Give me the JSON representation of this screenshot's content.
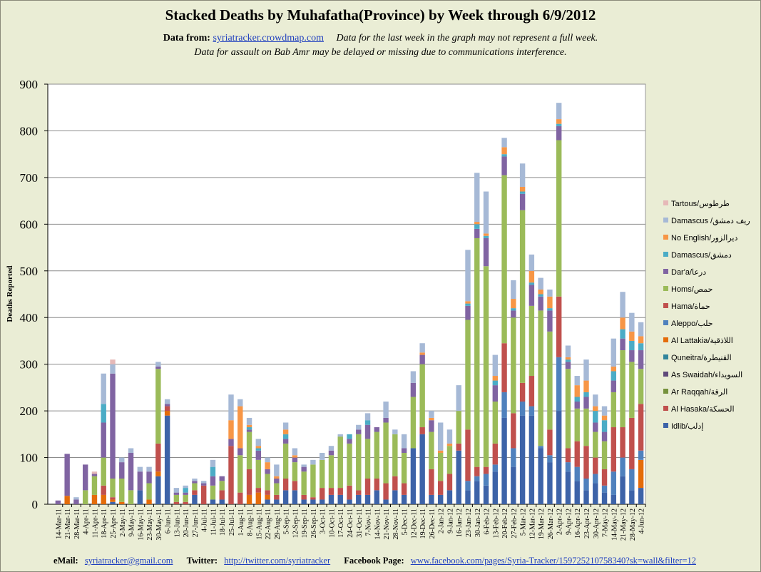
{
  "title": "Stacked Deaths by Muhafatha(Province) by Week through 6/9/2012",
  "header": {
    "data_from_label": "Data from:",
    "data_from_link": "syriatracker.crowdmap.com",
    "note1": "Data for the last week in the graph may not represent a full week.",
    "note2": "Data for assault on Bab Amr may be delayed or missing due to communications interference."
  },
  "footer": {
    "email_label": "eMail:",
    "email": "syriatracker@gmail.com",
    "twitter_label": "Twitter:",
    "twitter": "http://twitter.com/syriatracker",
    "facebook_label": "Facebook  Page:",
    "facebook": "www.facebook.com/pages/Syria-Tracker/159725210758340?sk=wall&filter=12"
  },
  "chart_data": {
    "type": "bar",
    "stacked": true,
    "title": "Stacked Deaths by Muhafatha(Province) by Week through 6/9/2012",
    "ylabel": "Deaths Reported",
    "xlabel": "",
    "ylim": [
      0,
      900
    ],
    "yticks": [
      0,
      100,
      200,
      300,
      400,
      500,
      600,
      700,
      800,
      900
    ],
    "grid": true,
    "legend_position": "right",
    "categories": [
      "14-Mar-11",
      "21-Mar-11",
      "28-Mar-11",
      "4-Apr-11",
      "11-Apr-11",
      "18-Apr-11",
      "25-Apr-11",
      "2-May-11",
      "9-May-11",
      "16-May-11",
      "23-May-11",
      "30-May-11",
      "6-Jun-11",
      "13-Jun-11",
      "20-Jun-11",
      "27-Jun-11",
      "4-Jul-11",
      "11-Jul-11",
      "18-Jul-11",
      "25-Jul-11",
      "1-Aug-11",
      "8-Aug-11",
      "15-Aug-11",
      "22-Aug-11",
      "29-Aug-11",
      "5-Sep-11",
      "12-Sep-11",
      "19-Sep-11",
      "26-Sep-11",
      "3-Oct-11",
      "10-Oct-11",
      "17-Oct-11",
      "24-Oct-11",
      "31-Oct-11",
      "7-Nov-11",
      "14-Nov-11",
      "21-Nov-11",
      "28-Nov-11",
      "5-Dec-11",
      "12-Dec-11",
      "19-Dec-11",
      "26-Dec-11",
      "2-Jan-12",
      "9-Jan-12",
      "16-Jan-12",
      "23-Jan-12",
      "30-Jan-12",
      "6-Feb-12",
      "13-Feb-12",
      "20-Feb-12",
      "27-Feb-12",
      "5-Mar-12",
      "12-Mar-12",
      "19-Mar-12",
      "26-Mar-12",
      "2-Apr-12",
      "9-Apr-12",
      "16-Apr-12",
      "23-Apr-12",
      "30-Apr-12",
      "7-May-12",
      "14-May-12",
      "21-May-12",
      "28-May-12",
      "4-Jun-12"
    ],
    "series": [
      {
        "name": "Idlib/إدلب",
        "color": "#3d63a8",
        "values": [
          0,
          0,
          0,
          0,
          0,
          0,
          5,
          0,
          0,
          30,
          0,
          60,
          190,
          0,
          0,
          20,
          0,
          10,
          10,
          0,
          0,
          0,
          0,
          10,
          10,
          30,
          30,
          10,
          10,
          10,
          20,
          20,
          10,
          20,
          20,
          30,
          10,
          30,
          20,
          120,
          150,
          20,
          20,
          30,
          115,
          30,
          50,
          40,
          70,
          185,
          80,
          190,
          190,
          120,
          90,
          200,
          70,
          50,
          30,
          45,
          25,
          20,
          60,
          30,
          35
        ]
      },
      {
        "name": "Al Hasaka/الحسكة",
        "color": "#c0504d",
        "values": [
          0,
          0,
          0,
          0,
          0,
          0,
          0,
          0,
          0,
          0,
          0,
          0,
          0,
          0,
          0,
          0,
          0,
          0,
          0,
          0,
          0,
          0,
          0,
          0,
          0,
          0,
          0,
          0,
          0,
          0,
          0,
          0,
          0,
          0,
          0,
          0,
          0,
          0,
          0,
          0,
          0,
          0,
          0,
          0,
          0,
          0,
          0,
          0,
          0,
          0,
          0,
          0,
          0,
          0,
          0,
          0,
          0,
          0,
          0,
          0,
          0,
          0,
          0,
          0,
          0
        ]
      },
      {
        "name": "Ar Raqqah/الرقة",
        "color": "#76923c",
        "values": [
          0,
          0,
          0,
          0,
          0,
          0,
          0,
          0,
          0,
          0,
          0,
          0,
          0,
          0,
          0,
          0,
          0,
          0,
          0,
          0,
          0,
          0,
          0,
          0,
          0,
          0,
          0,
          0,
          0,
          0,
          0,
          0,
          0,
          0,
          0,
          0,
          0,
          0,
          0,
          0,
          0,
          0,
          0,
          0,
          0,
          0,
          0,
          0,
          0,
          0,
          0,
          0,
          0,
          0,
          0,
          0,
          0,
          0,
          0,
          0,
          0,
          0,
          0,
          0,
          0
        ]
      },
      {
        "name": "As Swaidah/السويداء",
        "color": "#5f497a",
        "values": [
          0,
          0,
          0,
          0,
          0,
          0,
          0,
          0,
          0,
          0,
          0,
          0,
          0,
          0,
          0,
          0,
          0,
          0,
          0,
          0,
          0,
          0,
          0,
          0,
          0,
          0,
          0,
          0,
          0,
          0,
          0,
          0,
          0,
          0,
          0,
          0,
          0,
          0,
          0,
          0,
          0,
          0,
          0,
          0,
          0,
          0,
          0,
          0,
          0,
          0,
          0,
          0,
          0,
          0,
          0,
          0,
          0,
          0,
          0,
          0,
          0,
          0,
          0,
          0,
          0
        ]
      },
      {
        "name": "Quneitra/القنيطرة",
        "color": "#31859c",
        "values": [
          0,
          0,
          0,
          0,
          0,
          0,
          0,
          0,
          0,
          0,
          0,
          0,
          0,
          0,
          0,
          0,
          0,
          0,
          0,
          0,
          0,
          0,
          0,
          0,
          0,
          0,
          0,
          0,
          0,
          0,
          0,
          0,
          0,
          0,
          0,
          0,
          0,
          0,
          0,
          0,
          0,
          0,
          0,
          0,
          0,
          0,
          0,
          0,
          0,
          0,
          0,
          0,
          0,
          0,
          0,
          0,
          0,
          0,
          0,
          0,
          0,
          0,
          0,
          0,
          0
        ]
      },
      {
        "name": "Al Lattakia/اللاذقية",
        "color": "#e46c0a",
        "values": [
          0,
          18,
          0,
          0,
          20,
          20,
          5,
          5,
          0,
          0,
          10,
          10,
          10,
          0,
          0,
          0,
          0,
          0,
          0,
          0,
          0,
          20,
          25,
          10,
          0,
          0,
          0,
          0,
          0,
          0,
          0,
          0,
          0,
          0,
          0,
          0,
          0,
          0,
          0,
          0,
          0,
          0,
          0,
          0,
          0,
          0,
          0,
          0,
          0,
          0,
          0,
          0,
          0,
          0,
          0,
          0,
          0,
          0,
          0,
          0,
          0,
          0,
          0,
          0,
          60
        ]
      },
      {
        "name": "Aleppo/حلب",
        "color": "#4f81bd",
        "values": [
          0,
          0,
          0,
          0,
          0,
          0,
          0,
          0,
          0,
          0,
          0,
          0,
          0,
          0,
          0,
          0,
          0,
          0,
          0,
          0,
          0,
          0,
          0,
          0,
          0,
          0,
          0,
          0,
          0,
          0,
          0,
          0,
          0,
          0,
          0,
          0,
          0,
          0,
          0,
          0,
          0,
          0,
          0,
          0,
          0,
          20,
          10,
          25,
          15,
          55,
          40,
          30,
          20,
          5,
          15,
          115,
          20,
          30,
          25,
          20,
          15,
          50,
          40,
          45,
          20
        ]
      },
      {
        "name": "Hama/حماة",
        "color": "#c0504d",
        "values": [
          0,
          0,
          0,
          0,
          0,
          20,
          5,
          0,
          0,
          0,
          0,
          60,
          10,
          5,
          5,
          10,
          40,
          0,
          20,
          125,
          25,
          55,
          10,
          10,
          10,
          25,
          20,
          10,
          5,
          25,
          15,
          15,
          30,
          10,
          35,
          25,
          35,
          30,
          25,
          0,
          15,
          55,
          30,
          35,
          15,
          110,
          20,
          15,
          45,
          105,
          75,
          40,
          65,
          0,
          55,
          130,
          30,
          55,
          70,
          35,
          35,
          95,
          65,
          110,
          100
        ]
      },
      {
        "name": "Homs/حمص",
        "color": "#9bbb59",
        "values": [
          0,
          0,
          0,
          30,
          40,
          60,
          40,
          50,
          30,
          0,
          35,
          160,
          0,
          15,
          15,
          15,
          0,
          30,
          20,
          0,
          80,
          80,
          60,
          35,
          25,
          75,
          40,
          50,
          70,
          60,
          70,
          110,
          90,
          120,
          85,
          100,
          130,
          90,
          65,
          110,
          135,
          80,
          60,
          60,
          70,
          235,
          490,
          430,
          90,
          360,
          205,
          370,
          150,
          290,
          210,
          335,
          170,
          70,
          80,
          55,
          60,
          75,
          165,
          120,
          75
        ]
      },
      {
        "name": "Dar'a/درعا",
        "color": "#8064a2",
        "values": [
          8,
          90,
          10,
          55,
          5,
          75,
          225,
          35,
          80,
          40,
          25,
          5,
          5,
          5,
          5,
          5,
          5,
          20,
          10,
          15,
          15,
          5,
          20,
          10,
          10,
          10,
          10,
          10,
          0,
          0,
          10,
          0,
          10,
          10,
          30,
          10,
          10,
          0,
          10,
          30,
          20,
          25,
          0,
          0,
          0,
          30,
          20,
          60,
          35,
          40,
          15,
          35,
          45,
          30,
          45,
          30,
          15,
          15,
          25,
          20,
          20,
          25,
          25,
          25,
          40
        ]
      },
      {
        "name": "Damascus/دمشق",
        "color": "#4bacc6",
        "values": [
          0,
          0,
          0,
          0,
          0,
          40,
          0,
          0,
          0,
          0,
          0,
          0,
          0,
          0,
          10,
          0,
          0,
          20,
          0,
          0,
          0,
          5,
          5,
          0,
          0,
          10,
          0,
          0,
          0,
          0,
          0,
          0,
          10,
          0,
          10,
          0,
          0,
          0,
          0,
          0,
          0,
          0,
          0,
          0,
          0,
          5,
          10,
          5,
          10,
          5,
          5,
          5,
          5,
          5,
          5,
          5,
          5,
          10,
          10,
          25,
          25,
          20,
          20,
          20,
          15
        ]
      },
      {
        "name": "No English/ديرالزور",
        "color": "#f79646",
        "values": [
          0,
          0,
          0,
          0,
          0,
          0,
          0,
          0,
          0,
          0,
          0,
          0,
          0,
          0,
          0,
          0,
          0,
          0,
          0,
          40,
          90,
          5,
          5,
          15,
          5,
          10,
          5,
          0,
          0,
          0,
          0,
          0,
          0,
          0,
          0,
          0,
          0,
          0,
          0,
          0,
          5,
          5,
          5,
          5,
          0,
          5,
          5,
          5,
          10,
          15,
          20,
          10,
          25,
          10,
          25,
          10,
          5,
          25,
          25,
          10,
          10,
          10,
          25,
          20,
          15
        ]
      },
      {
        "name": "Damascus /ريف دمشق",
        "color": "#a6b9d6",
        "values": [
          0,
          0,
          5,
          0,
          0,
          65,
          20,
          10,
          10,
          10,
          10,
          10,
          10,
          10,
          5,
          5,
          5,
          15,
          0,
          55,
          15,
          15,
          15,
          10,
          25,
          15,
          15,
          5,
          10,
          15,
          10,
          5,
          0,
          10,
          15,
          0,
          35,
          10,
          30,
          25,
          20,
          15,
          60,
          30,
          55,
          110,
          105,
          90,
          45,
          20,
          40,
          50,
          35,
          25,
          15,
          35,
          25,
          20,
          45,
          25,
          20,
          60,
          55,
          40,
          30
        ]
      },
      {
        "name": "Tartous/طرطوس",
        "color": "#e6b9b8",
        "values": [
          0,
          0,
          0,
          0,
          5,
          0,
          10,
          0,
          0,
          0,
          0,
          0,
          0,
          0,
          0,
          0,
          0,
          0,
          0,
          0,
          0,
          0,
          0,
          0,
          0,
          0,
          0,
          0,
          0,
          0,
          0,
          0,
          0,
          0,
          0,
          0,
          0,
          0,
          0,
          0,
          0,
          0,
          0,
          0,
          0,
          0,
          0,
          0,
          0,
          0,
          0,
          0,
          0,
          0,
          0,
          0,
          0,
          0,
          0,
          0,
          0,
          0,
          0,
          0,
          0
        ]
      }
    ]
  }
}
